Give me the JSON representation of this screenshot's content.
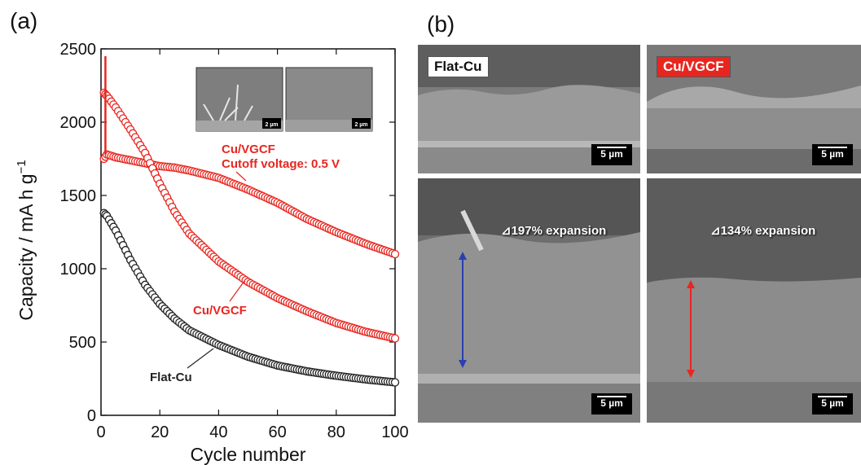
{
  "panel_labels": {
    "a": "(a)",
    "b": "(b)"
  },
  "chart_data": {
    "type": "scatter",
    "xlabel": "Cycle number",
    "ylabel": "Capacity / mA h g",
    "ylabel_superscript": "−1",
    "xlim": [
      0,
      100
    ],
    "ylim": [
      0,
      2500
    ],
    "xticks": [
      0,
      20,
      40,
      60,
      80,
      100
    ],
    "yticks": [
      0,
      500,
      1000,
      1500,
      2000,
      2500
    ],
    "grid": false,
    "legend": "none",
    "annotations": [
      {
        "lines": [
          "Cu/VGCF",
          "Cutoff voltage: 0.5 V"
        ],
        "color": "#e8261f"
      },
      {
        "lines": [
          "Cu/VGCF"
        ],
        "color": "#e8261f"
      },
      {
        "lines": [
          "Flat-Cu"
        ],
        "color": "#222222"
      }
    ],
    "inset_scalebars": [
      "2 µm",
      "2 µm"
    ],
    "series": [
      {
        "color": "#e8261f",
        "marker": "open-circle",
        "x": [
          1,
          2,
          5,
          10,
          15,
          20,
          25,
          30,
          40,
          50,
          60,
          70,
          80,
          90,
          100
        ],
        "y": [
          1750,
          1780,
          1760,
          1740,
          1720,
          1700,
          1690,
          1670,
          1620,
          1540,
          1450,
          1340,
          1250,
          1170,
          1100
        ]
      },
      {
        "color": "#e8261f",
        "marker": "open-circle",
        "x": [
          1,
          2,
          5,
          10,
          15,
          20,
          25,
          30,
          40,
          50,
          60,
          70,
          80,
          90,
          100
        ],
        "y": [
          2200,
          2180,
          2100,
          1950,
          1790,
          1580,
          1390,
          1240,
          1050,
          910,
          800,
          710,
          630,
          570,
          525
        ]
      },
      {
        "color": "#222222",
        "marker": "open-circle",
        "x": [
          1,
          2,
          5,
          10,
          15,
          20,
          25,
          30,
          40,
          50,
          60,
          70,
          80,
          90,
          100
        ],
        "y": [
          1380,
          1360,
          1260,
          1060,
          890,
          760,
          660,
          580,
          480,
          400,
          340,
          300,
          270,
          245,
          225
        ]
      }
    ]
  },
  "sem_images": {
    "panels": [
      {
        "label": "Flat-Cu",
        "label_color": "#111111",
        "scale": "5 µm"
      },
      {
        "label": "Cu/VGCF",
        "label_color": "#ffffff",
        "label_bg": "#e8261f",
        "scale": "5 µm"
      },
      {
        "expansion": "⊿197% expansion",
        "arrow_color": "#2a3fb0",
        "scale": "5 µm"
      },
      {
        "expansion": "⊿134% expansion",
        "arrow_color": "#e8261f",
        "scale": "5 µm"
      }
    ]
  }
}
